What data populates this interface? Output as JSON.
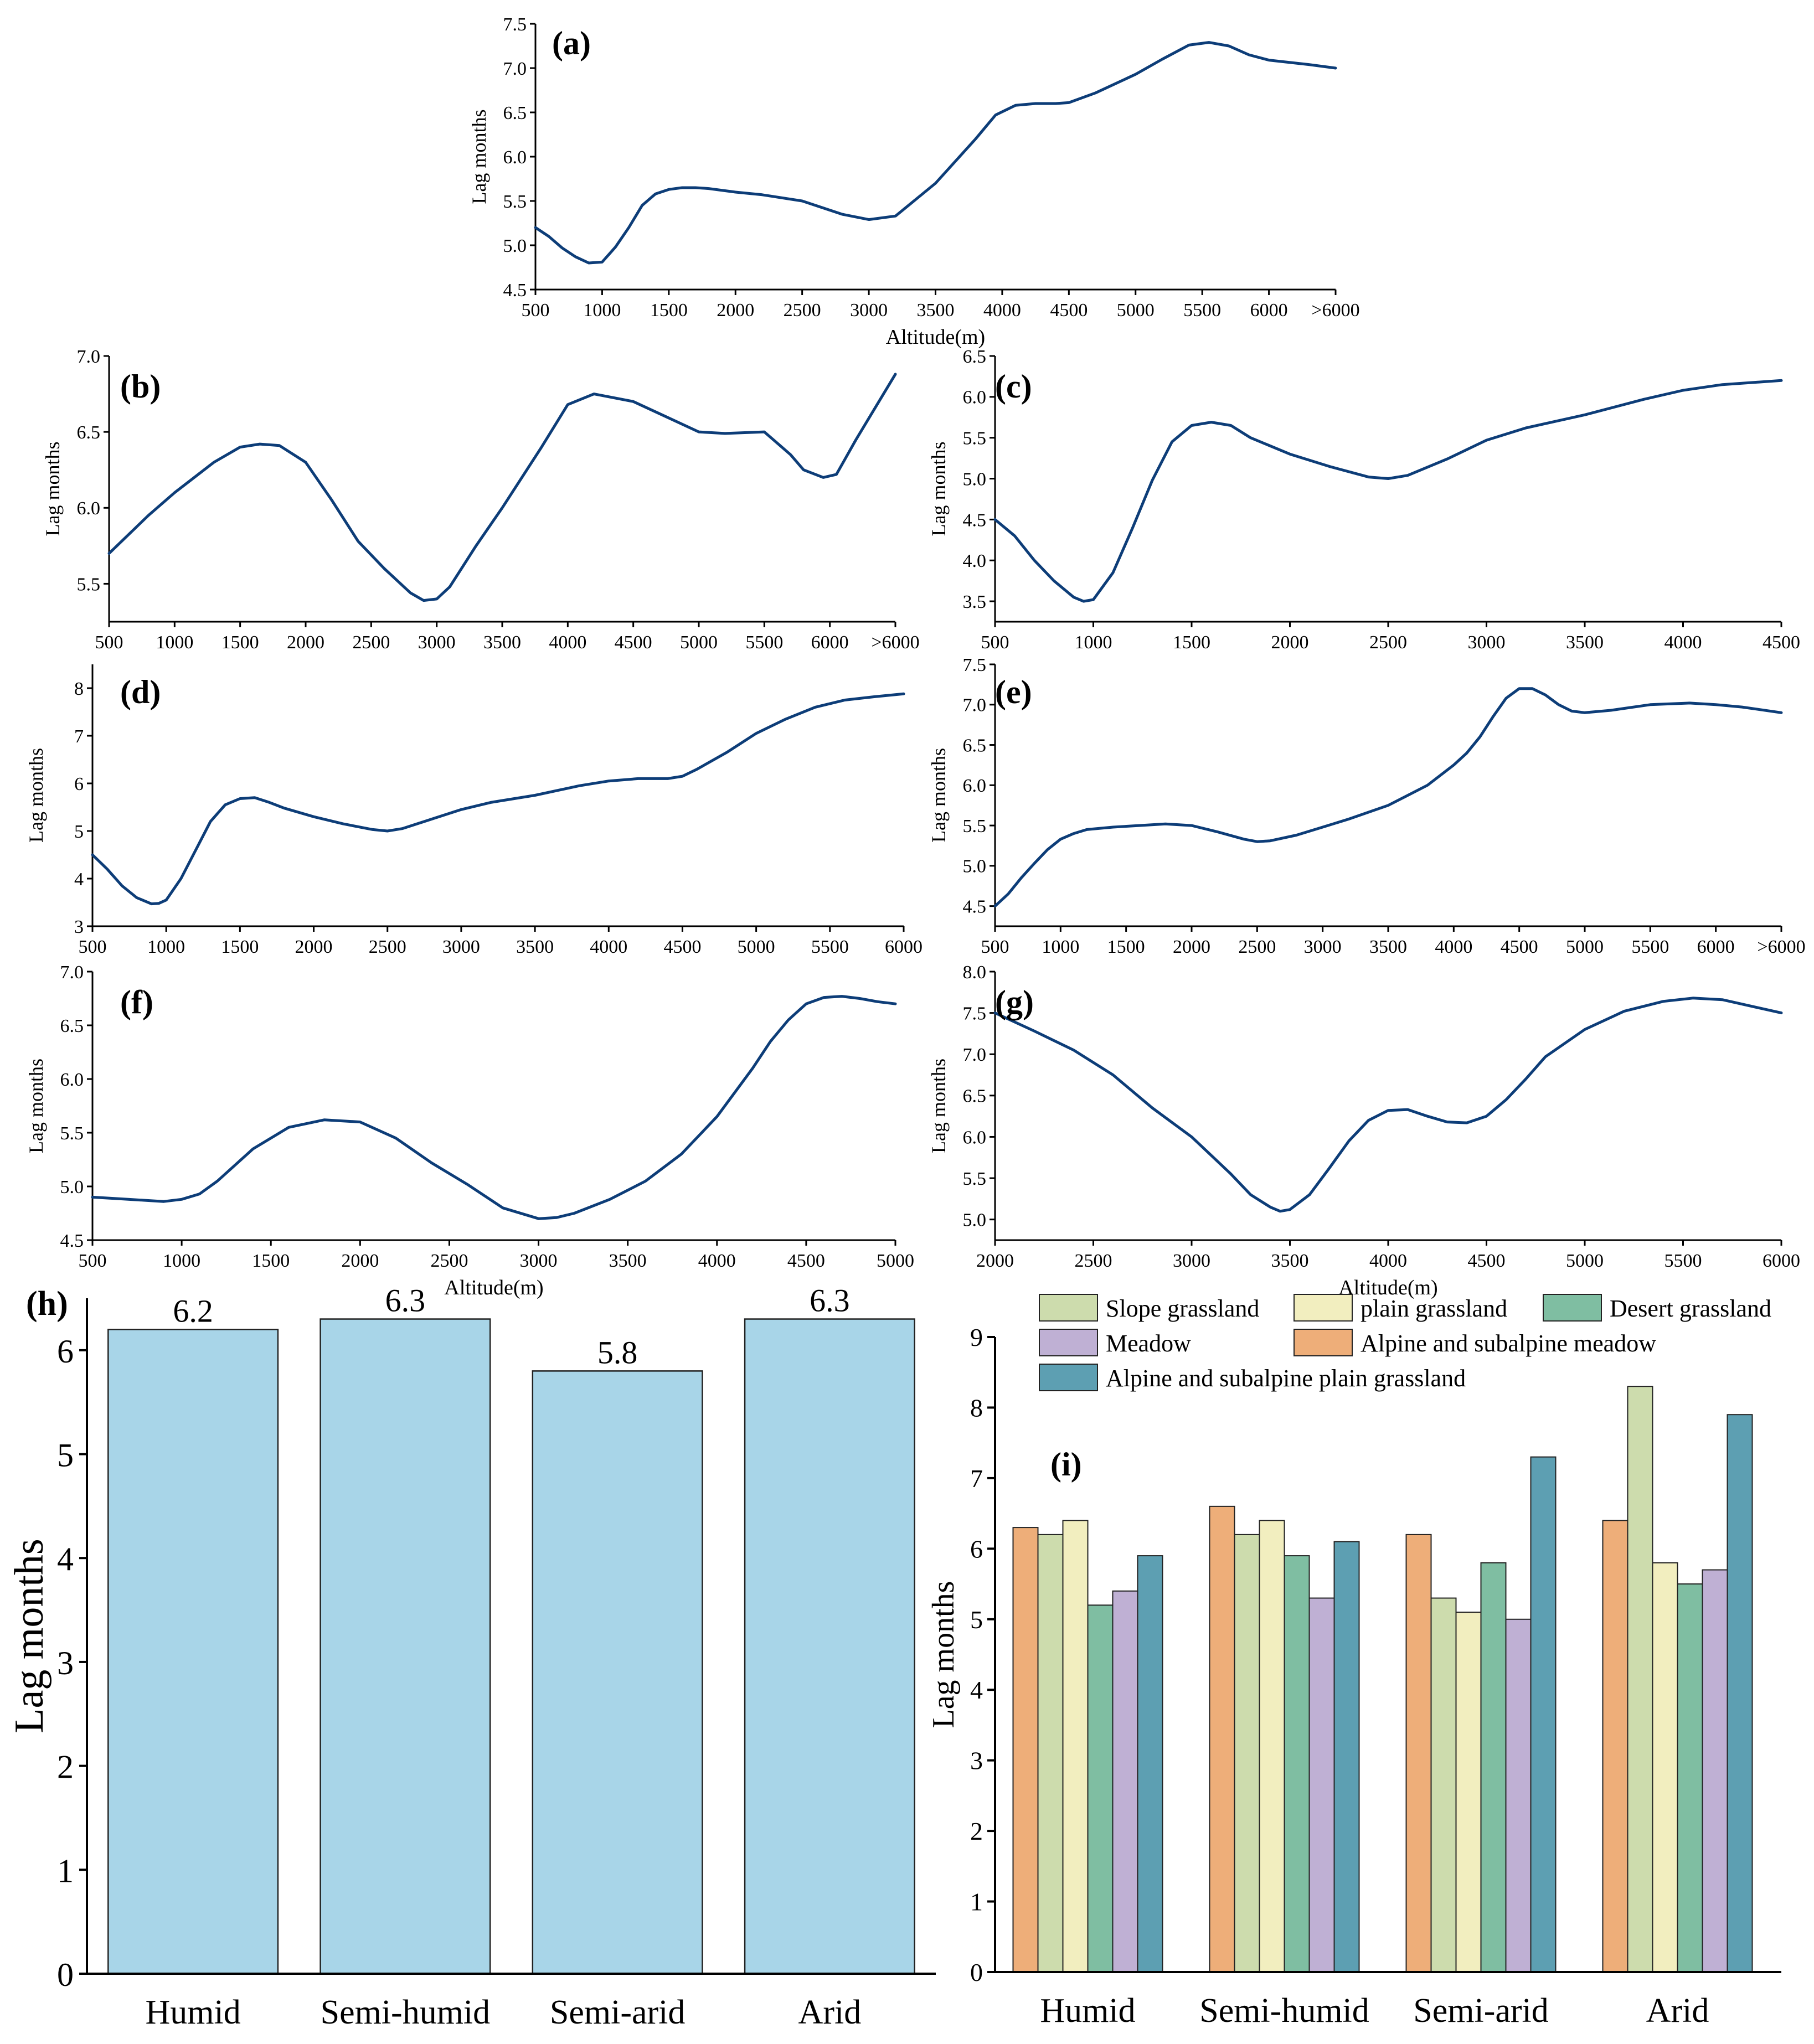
{
  "colors": {
    "line": "#0d3d78",
    "bar_h": "#a8d5e8",
    "bar_edge": "#222222",
    "axis": "#000000"
  },
  "chart_data": [
    {
      "id": "a",
      "panel_label": "(a)",
      "type": "line",
      "title": "",
      "xlabel": "Altitude(m)",
      "ylabel": "Lag months",
      "x_tick_labels": [
        "500",
        "1000",
        "1500",
        "2000",
        "2500",
        "3000",
        "3500",
        "4000",
        "4500",
        "5000",
        "5500",
        "6000",
        ">6000"
      ],
      "x": [
        500,
        600,
        700,
        800,
        900,
        1000,
        1100,
        1200,
        1300,
        1400,
        1500,
        1600,
        1700,
        1800,
        2000,
        2200,
        2500,
        2800,
        3000,
        3200,
        3500,
        3800,
        3950,
        4100,
        4250,
        4400,
        4500,
        4700,
        5000,
        5200,
        5400,
        5550,
        5700,
        5850,
        6000,
        6300,
        6500
      ],
      "values": [
        5.2,
        5.1,
        4.97,
        4.87,
        4.8,
        4.81,
        4.98,
        5.2,
        5.45,
        5.58,
        5.63,
        5.65,
        5.65,
        5.64,
        5.6,
        5.57,
        5.5,
        5.35,
        5.29,
        5.33,
        5.7,
        6.2,
        6.47,
        6.58,
        6.6,
        6.6,
        6.61,
        6.72,
        6.93,
        7.1,
        7.26,
        7.29,
        7.25,
        7.15,
        7.09,
        7.04,
        7.0
      ],
      "xlim": [
        500,
        6500
      ],
      "ylim": [
        4.5,
        7.5
      ],
      "y_ticks": [
        "4.5",
        "5.0",
        "5.5",
        "6.0",
        "6.5",
        "7.0",
        "7.5"
      ]
    },
    {
      "id": "b",
      "panel_label": "(b)",
      "type": "line",
      "title": "",
      "xlabel": "",
      "ylabel": "Lag months",
      "x_tick_labels": [
        "500",
        "1000",
        "1500",
        "2000",
        "2500",
        "3000",
        "3500",
        "4000",
        "4500",
        "5000",
        "5500",
        "6000",
        ">6000"
      ],
      "x": [
        500,
        800,
        1000,
        1300,
        1500,
        1650,
        1800,
        2000,
        2200,
        2400,
        2600,
        2800,
        2900,
        3000,
        3100,
        3300,
        3500,
        3800,
        4000,
        4200,
        4500,
        4700,
        5000,
        5200,
        5500,
        5700,
        5800,
        5950,
        6050,
        6200,
        6500
      ],
      "values": [
        5.7,
        5.95,
        6.1,
        6.3,
        6.4,
        6.42,
        6.41,
        6.3,
        6.05,
        5.78,
        5.6,
        5.44,
        5.39,
        5.4,
        5.48,
        5.75,
        6.0,
        6.4,
        6.68,
        6.75,
        6.7,
        6.62,
        6.5,
        6.49,
        6.5,
        6.35,
        6.25,
        6.2,
        6.22,
        6.45,
        6.88
      ],
      "xlim": [
        500,
        6500
      ],
      "ylim": [
        5.25,
        7.0
      ],
      "y_ticks": [
        "5.5",
        "6.0",
        "6.5",
        "7.0"
      ]
    },
    {
      "id": "c",
      "panel_label": "(c)",
      "type": "line",
      "title": "",
      "xlabel": "",
      "ylabel": "Lag months",
      "x_tick_labels": [
        "500",
        "1000",
        "1500",
        "2000",
        "2500",
        "3000",
        "3500",
        "4000",
        "4500"
      ],
      "x": [
        500,
        600,
        700,
        800,
        900,
        950,
        1000,
        1100,
        1200,
        1300,
        1400,
        1500,
        1600,
        1700,
        1800,
        2000,
        2200,
        2400,
        2500,
        2600,
        2800,
        3000,
        3200,
        3500,
        3800,
        4000,
        4200,
        4500
      ],
      "values": [
        4.5,
        4.3,
        4.0,
        3.75,
        3.55,
        3.5,
        3.52,
        3.85,
        4.4,
        4.98,
        5.45,
        5.65,
        5.69,
        5.65,
        5.5,
        5.3,
        5.15,
        5.02,
        5.0,
        5.04,
        5.24,
        5.47,
        5.62,
        5.78,
        5.97,
        6.08,
        6.15,
        6.2
      ],
      "xlim": [
        500,
        4500
      ],
      "ylim": [
        3.25,
        6.5
      ],
      "y_ticks": [
        "3.5",
        "4.0",
        "4.5",
        "5.0",
        "5.5",
        "6.0",
        "6.5"
      ]
    },
    {
      "id": "d",
      "panel_label": "(d)",
      "type": "line",
      "title": "",
      "xlabel": "",
      "ylabel": "Lag months",
      "x_tick_labels": [
        "500",
        "1000",
        "1500",
        "2000",
        "2500",
        "3000",
        "3500",
        "4000",
        "4500",
        "5000",
        "5500",
        "6000"
      ],
      "x": [
        500,
        600,
        700,
        800,
        900,
        950,
        1000,
        1100,
        1200,
        1300,
        1400,
        1500,
        1600,
        1700,
        1800,
        2000,
        2200,
        2400,
        2500,
        2600,
        2800,
        3000,
        3200,
        3500,
        3800,
        4000,
        4200,
        4400,
        4500,
        4600,
        4800,
        5000,
        5200,
        5400,
        5600,
        5800,
        6000
      ],
      "values": [
        4.5,
        4.2,
        3.85,
        3.6,
        3.47,
        3.48,
        3.55,
        4.0,
        4.6,
        5.2,
        5.55,
        5.68,
        5.7,
        5.6,
        5.48,
        5.3,
        5.15,
        5.03,
        5.0,
        5.05,
        5.25,
        5.45,
        5.6,
        5.75,
        5.95,
        6.05,
        6.1,
        6.1,
        6.15,
        6.3,
        6.65,
        7.05,
        7.35,
        7.6,
        7.75,
        7.82,
        7.88
      ],
      "xlim": [
        500,
        6000
      ],
      "ylim": [
        3,
        8.5
      ],
      "y_ticks": [
        "3",
        "4",
        "5",
        "6",
        "7",
        "8"
      ]
    },
    {
      "id": "e",
      "panel_label": "(e)",
      "type": "line",
      "title": "",
      "xlabel": "",
      "ylabel": "Lag months",
      "x_tick_labels": [
        "500",
        "1000",
        "1500",
        "2000",
        "2500",
        "3000",
        "3500",
        "4000",
        "4500",
        "5000",
        "5500",
        "6000",
        ">6000"
      ],
      "x": [
        500,
        600,
        700,
        800,
        900,
        1000,
        1100,
        1200,
        1400,
        1600,
        1800,
        2000,
        2200,
        2400,
        2500,
        2600,
        2800,
        3000,
        3200,
        3500,
        3800,
        4000,
        4100,
        4200,
        4300,
        4400,
        4500,
        4600,
        4700,
        4800,
        4900,
        5000,
        5200,
        5500,
        5800,
        6000,
        6200,
        6500
      ],
      "values": [
        4.5,
        4.65,
        4.85,
        5.03,
        5.2,
        5.33,
        5.4,
        5.45,
        5.48,
        5.5,
        5.52,
        5.5,
        5.42,
        5.33,
        5.3,
        5.31,
        5.38,
        5.48,
        5.58,
        5.75,
        6.0,
        6.25,
        6.4,
        6.6,
        6.85,
        7.08,
        7.2,
        7.2,
        7.12,
        7.0,
        6.92,
        6.9,
        6.93,
        7.0,
        7.02,
        7.0,
        6.97,
        6.9
      ],
      "xlim": [
        500,
        6500
      ],
      "ylim": [
        4.25,
        7.5
      ],
      "y_ticks": [
        "4.5",
        "5.0",
        "5.5",
        "6.0",
        "6.5",
        "7.0",
        "7.5"
      ]
    },
    {
      "id": "f",
      "panel_label": "(f)",
      "type": "line",
      "title": "",
      "xlabel": "Altitude(m)",
      "ylabel": "Lag months",
      "x_tick_labels": [
        "500",
        "1000",
        "1500",
        "2000",
        "2500",
        "3000",
        "3500",
        "4000",
        "4500",
        "5000"
      ],
      "x": [
        500,
        700,
        900,
        1000,
        1100,
        1200,
        1400,
        1600,
        1800,
        2000,
        2200,
        2400,
        2600,
        2800,
        3000,
        3100,
        3200,
        3400,
        3600,
        3800,
        4000,
        4200,
        4300,
        4400,
        4500,
        4600,
        4700,
        4800,
        4900,
        5000
      ],
      "values": [
        4.9,
        4.88,
        4.86,
        4.88,
        4.93,
        5.05,
        5.35,
        5.55,
        5.62,
        5.6,
        5.45,
        5.22,
        5.02,
        4.8,
        4.7,
        4.71,
        4.75,
        4.88,
        5.05,
        5.3,
        5.65,
        6.1,
        6.35,
        6.55,
        6.7,
        6.76,
        6.77,
        6.75,
        6.72,
        6.7
      ],
      "xlim": [
        500,
        5000
      ],
      "ylim": [
        4.5,
        7.0
      ],
      "y_ticks": [
        "4.5",
        "5.0",
        "5.5",
        "6.0",
        "6.5",
        "7.0"
      ]
    },
    {
      "id": "g",
      "panel_label": "(g)",
      "type": "line",
      "title": "",
      "xlabel": "Altitude(m)",
      "ylabel": "Lag months",
      "x_tick_labels": [
        "2000",
        "2500",
        "3000",
        "3500",
        "4000",
        "4500",
        "5000",
        "5500",
        "6000"
      ],
      "x": [
        2000,
        2200,
        2400,
        2600,
        2800,
        3000,
        3200,
        3300,
        3400,
        3450,
        3500,
        3600,
        3700,
        3800,
        3900,
        4000,
        4100,
        4200,
        4300,
        4400,
        4500,
        4600,
        4700,
        4800,
        5000,
        5200,
        5400,
        5550,
        5700,
        5850,
        6000
      ],
      "values": [
        7.5,
        7.28,
        7.05,
        6.75,
        6.35,
        6.0,
        5.55,
        5.3,
        5.15,
        5.1,
        5.12,
        5.3,
        5.62,
        5.95,
        6.2,
        6.32,
        6.33,
        6.25,
        6.18,
        6.17,
        6.25,
        6.45,
        6.7,
        6.97,
        7.3,
        7.52,
        7.64,
        7.68,
        7.66,
        7.58,
        7.5
      ],
      "xlim": [
        2000,
        6000
      ],
      "ylim": [
        4.75,
        8.0
      ],
      "y_ticks": [
        "5.0",
        "5.5",
        "6.0",
        "6.5",
        "7.0",
        "7.5",
        "8.0"
      ]
    },
    {
      "id": "h",
      "panel_label": "(h)",
      "type": "bar",
      "title": "",
      "xlabel": "",
      "ylabel": "Lag months",
      "categories": [
        "Humid",
        "Semi-humid",
        "Semi-arid",
        "Arid"
      ],
      "values": [
        6.2,
        6.3,
        5.8,
        6.3
      ],
      "data_labels": [
        "6.2",
        "6.3",
        "5.8",
        "6.3"
      ],
      "ylim": [
        0,
        6.5
      ],
      "y_ticks": [
        "0",
        "1",
        "2",
        "3",
        "4",
        "5",
        "6"
      ]
    },
    {
      "id": "i",
      "panel_label": "(i)",
      "type": "bar",
      "title": "",
      "xlabel": "",
      "ylabel": "Lag months",
      "categories": [
        "Humid",
        "Semi-humid",
        "Semi-arid",
        "Arid"
      ],
      "legend_placement": "top",
      "legend": [
        {
          "name": "Slope grassland",
          "color": "#cddcad"
        },
        {
          "name": "plain grassland",
          "color": "#f2eebf"
        },
        {
          "name": "Desert grassland",
          "color": "#7fbea2"
        },
        {
          "name": "Meadow",
          "color": "#bfb0d4"
        },
        {
          "name": "Alpine and subalpine meadow",
          "color": "#eeae79"
        },
        {
          "name": "Alpine and subalpine plain grassland",
          "color": "#5d9fb2"
        }
      ],
      "series": [
        {
          "name": "Alpine and subalpine meadow",
          "color": "#eeae79",
          "values": [
            6.3,
            6.6,
            6.2,
            6.4
          ]
        },
        {
          "name": "Slope grassland",
          "color": "#cddcad",
          "values": [
            6.2,
            6.2,
            5.3,
            8.3
          ]
        },
        {
          "name": "plain grassland",
          "color": "#f2eebf",
          "values": [
            6.4,
            6.4,
            5.1,
            5.8
          ]
        },
        {
          "name": "Desert grassland",
          "color": "#7fbea2",
          "values": [
            5.2,
            5.9,
            5.8,
            5.5
          ]
        },
        {
          "name": "Meadow",
          "color": "#bfb0d4",
          "values": [
            5.4,
            5.3,
            5.0,
            5.7
          ]
        },
        {
          "name": "Alpine and subalpine plain grassland",
          "color": "#5d9fb2",
          "values": [
            5.9,
            6.1,
            7.3,
            7.9
          ]
        }
      ],
      "ylim": [
        0,
        9
      ],
      "y_ticks": [
        "0",
        "1",
        "2",
        "3",
        "4",
        "5",
        "6",
        "7",
        "8",
        "9"
      ]
    }
  ]
}
